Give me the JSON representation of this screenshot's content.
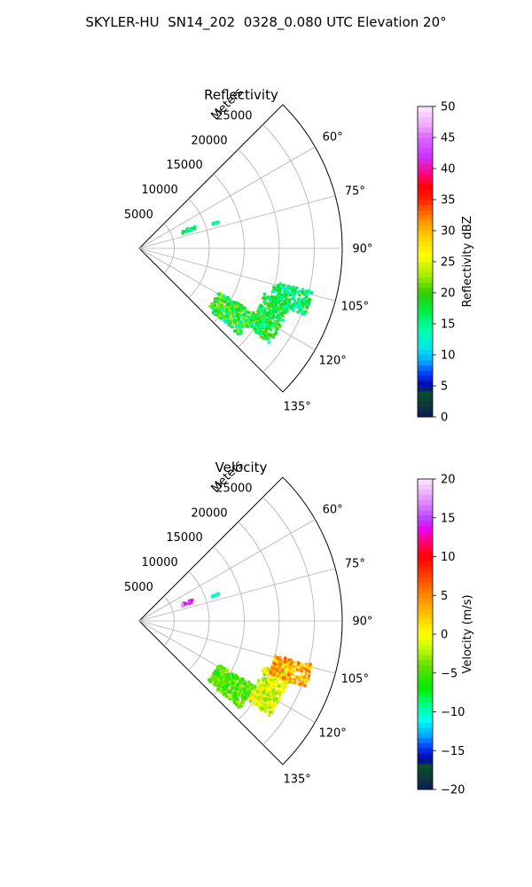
{
  "figure": {
    "suptitle": "SKYLER-HU  SN14_202  0328_0.080 UTC Elevation 20°"
  },
  "chart_data": [
    {
      "type": "heatmap",
      "projection": "polar-sector",
      "title": "Reflectivity",
      "range_label": "Meters",
      "range_ticks": [
        5000,
        10000,
        15000,
        20000,
        25000
      ],
      "range_tick_labels": [
        "5000",
        "10000",
        "15000",
        "20000",
        "25000"
      ],
      "rmax": 29000,
      "azimuth_range_deg": [
        45,
        135
      ],
      "azimuth_gridlines_deg": [
        45,
        60,
        75,
        90,
        105,
        120,
        135
      ],
      "azimuth_tick_labels": [
        "60°",
        "75°",
        "90°",
        "105°",
        "120°",
        "135°"
      ],
      "grid": true,
      "colorbar": {
        "label": "Reflectivity dBZ",
        "min": 0,
        "max": 50,
        "ticks": [
          0,
          5,
          10,
          15,
          20,
          25,
          30,
          35,
          40,
          45,
          50
        ],
        "tick_labels": [
          "0",
          "5",
          "10",
          "15",
          "20",
          "25",
          "30",
          "35",
          "40",
          "45",
          "50"
        ],
        "stops": [
          {
            "v": 0,
            "c": "#0a1a5c"
          },
          {
            "v": 2,
            "c": "#0d3a3a"
          },
          {
            "v": 4,
            "c": "#0b4d2a"
          },
          {
            "v": 5,
            "c": "#0000aa"
          },
          {
            "v": 7,
            "c": "#0040ff"
          },
          {
            "v": 9,
            "c": "#00aaff"
          },
          {
            "v": 11,
            "c": "#00e5ee"
          },
          {
            "v": 14,
            "c": "#00ffb0"
          },
          {
            "v": 17,
            "c": "#00ee44"
          },
          {
            "v": 20,
            "c": "#33cc00"
          },
          {
            "v": 23,
            "c": "#aaee00"
          },
          {
            "v": 26,
            "c": "#ffff00"
          },
          {
            "v": 29,
            "c": "#ffd000"
          },
          {
            "v": 32,
            "c": "#ff8800"
          },
          {
            "v": 35,
            "c": "#ff2200"
          },
          {
            "v": 37,
            "c": "#ff0000"
          },
          {
            "v": 39,
            "c": "#ff0077"
          },
          {
            "v": 42,
            "c": "#cc33ff"
          },
          {
            "v": 45,
            "c": "#dd66ff"
          },
          {
            "v": 47,
            "c": "#f0aaff"
          },
          {
            "v": 50,
            "c": "#ffe8ff"
          }
        ]
      },
      "echo_regions": [
        {
          "az_deg": [
            68,
            71
          ],
          "range_m": [
            6500,
            8500
          ],
          "values": [
            12,
            20
          ]
        },
        {
          "az_deg": [
            71,
            72
          ],
          "range_m": [
            11000,
            12000
          ],
          "values": [
            13,
            16
          ]
        },
        {
          "az_deg": [
            119,
            131
          ],
          "range_m": [
            13000,
            19000
          ],
          "values": [
            12,
            24
          ]
        },
        {
          "az_deg": [
            110,
            126
          ],
          "range_m": [
            19000,
            23000
          ],
          "values": [
            14,
            22
          ]
        },
        {
          "az_deg": [
            104,
            112
          ],
          "range_m": [
            20000,
            25500
          ],
          "values": [
            12,
            20
          ]
        }
      ]
    },
    {
      "type": "heatmap",
      "projection": "polar-sector",
      "title": "Velocity",
      "range_label": "Meters",
      "range_ticks": [
        5000,
        10000,
        15000,
        20000,
        25000
      ],
      "range_tick_labels": [
        "5000",
        "10000",
        "15000",
        "20000",
        "25000"
      ],
      "rmax": 29000,
      "azimuth_range_deg": [
        45,
        135
      ],
      "azimuth_gridlines_deg": [
        45,
        60,
        75,
        90,
        105,
        120,
        135
      ],
      "azimuth_tick_labels": [
        "60°",
        "75°",
        "90°",
        "105°",
        "120°",
        "135°"
      ],
      "grid": true,
      "colorbar": {
        "label": "Velocity (m/s)",
        "min": -20,
        "max": 20,
        "ticks": [
          -20,
          -15,
          -10,
          -5,
          0,
          5,
          10,
          15,
          20
        ],
        "tick_labels": [
          "−20",
          "−15",
          "−10",
          "−5",
          "0",
          "5",
          "10",
          "15",
          "20"
        ],
        "stops": [
          {
            "v": -20,
            "c": "#0a1a5c"
          },
          {
            "v": -18.5,
            "c": "#0d3a3a"
          },
          {
            "v": -17,
            "c": "#0b4d2a"
          },
          {
            "v": -16,
            "c": "#0000aa"
          },
          {
            "v": -14.5,
            "c": "#0040ff"
          },
          {
            "v": -13,
            "c": "#00aaff"
          },
          {
            "v": -11,
            "c": "#00ffee"
          },
          {
            "v": -9,
            "c": "#00ff88"
          },
          {
            "v": -7,
            "c": "#00ee00"
          },
          {
            "v": -4,
            "c": "#66dd00"
          },
          {
            "v": -1.5,
            "c": "#ccff00"
          },
          {
            "v": 0,
            "c": "#ffff00"
          },
          {
            "v": 2,
            "c": "#ffd000"
          },
          {
            "v": 5,
            "c": "#ff8800"
          },
          {
            "v": 8,
            "c": "#ff3300"
          },
          {
            "v": 10,
            "c": "#ff0000"
          },
          {
            "v": 12,
            "c": "#ff0077"
          },
          {
            "v": 13.5,
            "c": "#ee00ee"
          },
          {
            "v": 15,
            "c": "#bb44ff"
          },
          {
            "v": 17,
            "c": "#dd88ff"
          },
          {
            "v": 20,
            "c": "#ffe8ff"
          }
        ]
      },
      "echo_regions": [
        {
          "az_deg": [
            68,
            71
          ],
          "range_m": [
            6500,
            8500
          ],
          "values": [
            13,
            18
          ]
        },
        {
          "az_deg": [
            71,
            72
          ],
          "range_m": [
            11000,
            12000
          ],
          "values": [
            -11,
            -9
          ]
        },
        {
          "az_deg": [
            119,
            131
          ],
          "range_m": [
            13000,
            19000
          ],
          "values": [
            -7,
            -2
          ]
        },
        {
          "az_deg": [
            110,
            126
          ],
          "range_m": [
            19000,
            23000
          ],
          "values": [
            -4,
            2
          ]
        },
        {
          "az_deg": [
            104,
            112
          ],
          "range_m": [
            20000,
            25500
          ],
          "values": [
            0,
            7
          ]
        }
      ]
    }
  ]
}
